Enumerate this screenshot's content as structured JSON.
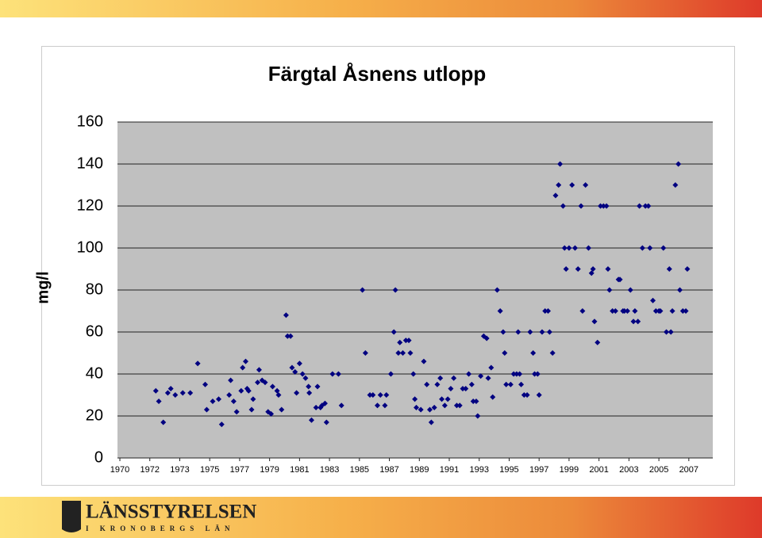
{
  "chart_data": {
    "type": "scatter",
    "title": "Färgtal Åsnens utlopp",
    "y_label": "mg/l",
    "ylim": [
      0,
      160
    ],
    "yticks": [
      0,
      20,
      40,
      60,
      80,
      100,
      120,
      140,
      160
    ],
    "xlim": [
      1969.84,
      2009.6
    ],
    "xticks": [
      1970,
      1972,
      {
        "value": 1974,
        "label": "1973"
      },
      {
        "value": 1976,
        "label": "1975"
      },
      {
        "value": 1978,
        "label": "1977"
      },
      {
        "value": 1980,
        "label": "1979"
      },
      {
        "value": 1982,
        "label": "1981"
      },
      {
        "value": 1984,
        "label": "1983"
      },
      {
        "value": 1986,
        "label": "1985"
      },
      {
        "value": 1988,
        "label": "1987"
      },
      {
        "value": 1990,
        "label": "1989"
      },
      {
        "value": 1992,
        "label": "1991"
      },
      {
        "value": 1994,
        "label": "1993"
      },
      {
        "value": 1996,
        "label": "1995"
      },
      {
        "value": 1998,
        "label": "1997"
      },
      {
        "value": 2000,
        "label": "1999"
      },
      {
        "value": 2002,
        "label": "2001"
      },
      {
        "value": 2004,
        "label": "2003"
      },
      {
        "value": 2006,
        "label": "2005"
      },
      {
        "value": 2008,
        "label": "2007"
      }
    ],
    "grid": true,
    "series": [
      {
        "color": "#000080",
        "x": [
          1972.4,
          1972.6,
          1972.9,
          1973.2,
          1973.4,
          1973.7,
          1974.2,
          1974.7,
          1975.2,
          1975.7,
          1975.8,
          1976.2,
          1976.6,
          1976.8,
          1977.3,
          1977.4,
          1977.6,
          1977.8,
          1978.1,
          1978.2,
          1978.4,
          1978.5,
          1978.6,
          1978.8,
          1978.9,
          1979.2,
          1979.3,
          1979.5,
          1979.7,
          1979.9,
          1980.1,
          1980.2,
          1980.5,
          1980.6,
          1980.8,
          1981.1,
          1981.2,
          1981.4,
          1981.5,
          1981.7,
          1981.8,
          1982.0,
          1982.2,
          1982.4,
          1982.6,
          1982.65,
          1982.8,
          1983.1,
          1983.2,
          1983.4,
          1983.5,
          1983.7,
          1983.8,
          1984.2,
          1984.6,
          1984.8,
          1986.2,
          1986.4,
          1986.7,
          1986.9,
          1987.2,
          1987.4,
          1987.7,
          1987.8,
          1988.1,
          1988.3,
          1988.4,
          1988.6,
          1988.7,
          1988.9,
          1989.1,
          1989.3,
          1989.4,
          1989.6,
          1989.7,
          1989.8,
          1990.1,
          1990.3,
          1990.5,
          1990.7,
          1990.8,
          1991.0,
          1991.2,
          1991.4,
          1991.5,
          1991.7,
          1991.9,
          1992.1,
          1992.3,
          1992.5,
          1992.7,
          1992.9,
          1993.1,
          1993.3,
          1993.5,
          1993.6,
          1993.8,
          1993.9,
          1994.1,
          1994.3,
          1994.5,
          1994.6,
          1994.8,
          1994.9,
          1995.2,
          1995.4,
          1995.6,
          1995.7,
          1995.8,
          1996.1,
          1996.3,
          1996.5,
          1996.6,
          1996.7,
          1996.8,
          1997.0,
          1997.2,
          1997.4,
          1997.6,
          1997.7,
          1997.9,
          1998.0,
          1998.2,
          1998.4,
          1998.6,
          1998.7,
          1998.9,
          1999.1,
          1999.3,
          1999.4,
          1999.6,
          1999.7,
          1999.8,
          2000.0,
          2000.2,
          2000.4,
          2000.6,
          2000.8,
          2000.9,
          2001.1,
          2001.3,
          2001.5,
          2001.6,
          2001.7,
          2001.9,
          2002.1,
          2002.3,
          2002.5,
          2002.6,
          2002.7,
          2002.9,
          2003.1,
          2003.3,
          2003.4,
          2003.6,
          2003.7,
          2003.9,
          2004.1,
          2004.3,
          2004.4,
          2004.6,
          2004.7,
          2004.9,
          2005.1,
          2005.3,
          2005.4,
          2005.6,
          2005.8,
          2006.0,
          2006.1,
          2006.3,
          2006.5,
          2006.7,
          2006.8,
          2006.9,
          2007.1,
          2007.3,
          2007.4,
          2007.6,
          2007.8,
          2007.9
        ],
        "values": [
          32,
          27,
          17,
          31,
          33,
          30,
          31,
          31,
          45,
          35,
          23,
          27,
          28,
          16,
          30,
          37,
          27,
          22,
          32,
          43,
          46,
          33,
          32,
          23,
          28,
          36,
          42,
          37,
          36,
          22,
          21,
          34,
          32,
          30,
          23,
          68,
          58,
          58,
          43,
          41,
          31,
          45,
          40,
          38,
          34,
          31,
          18,
          24,
          34,
          24,
          25,
          26,
          17,
          40,
          40,
          25,
          80,
          50,
          30,
          30,
          25,
          30,
          25,
          30,
          40,
          60,
          80,
          50,
          55,
          50,
          56,
          56,
          50,
          40,
          28,
          24,
          23,
          46,
          35,
          23,
          17,
          24,
          35,
          38,
          28,
          25,
          28,
          33,
          38,
          25,
          25,
          33,
          33,
          40,
          35,
          27,
          27,
          20,
          39,
          58,
          57,
          38,
          43,
          29,
          80,
          70,
          60,
          50,
          35,
          35,
          40,
          40,
          60,
          40,
          35,
          30,
          30,
          60,
          50,
          40,
          40,
          30,
          60,
          70,
          70,
          60,
          50,
          125,
          130,
          140,
          120,
          100,
          90,
          100,
          130,
          100,
          90,
          120,
          70,
          130,
          100,
          88,
          90,
          65,
          55,
          120,
          120,
          120,
          90,
          80,
          70,
          70,
          85,
          85,
          70,
          70,
          70,
          80,
          65,
          70,
          65,
          120,
          100,
          120,
          120,
          100,
          75,
          70,
          70,
          70,
          100,
          60,
          90,
          60,
          70,
          130,
          140,
          80,
          70,
          70,
          90
        ]
      }
    ]
  },
  "footer": {
    "logo": "LÄNSSTYRELSEN",
    "sub": "I KRONOBERGS LÄN"
  }
}
